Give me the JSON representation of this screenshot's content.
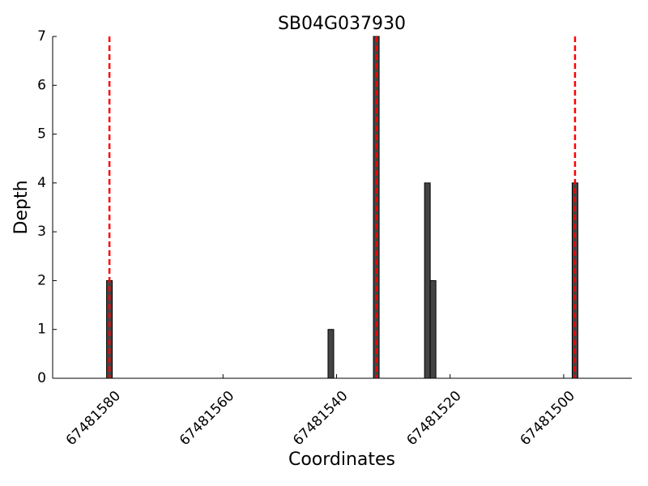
{
  "chart_data": {
    "type": "bar",
    "title": "SB04G037930",
    "x_label": "Coordinates",
    "y_label": "Depth",
    "x": [
      67481580,
      67481541,
      67481533,
      67481524,
      67481523,
      67481498
    ],
    "values": [
      2,
      1,
      7,
      4,
      2,
      4
    ],
    "color": "#444444",
    "vlines": [
      67481580,
      67481533,
      67481498
    ],
    "vline_color": "#ff0000",
    "xlim": [
      67481590,
      67481488
    ],
    "xticks": [
      67481580,
      67481560,
      67481540,
      67481520,
      67481500
    ],
    "ylim": [
      0,
      7
    ],
    "yticks": [
      0,
      1,
      2,
      3,
      4,
      5,
      6,
      7
    ]
  }
}
